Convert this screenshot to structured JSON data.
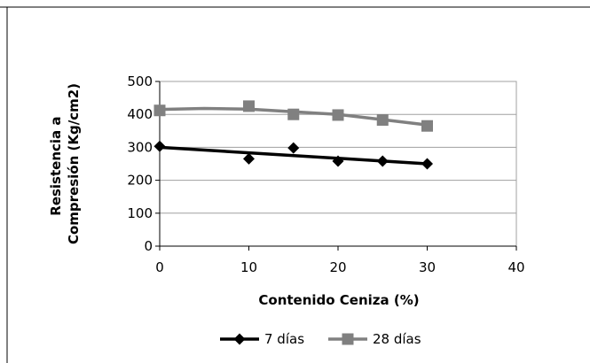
{
  "chart_data": {
    "type": "line",
    "title": "",
    "xlabel": "Contenido Ceniza (%)",
    "ylabel": "Resistencia a Compresión (Kg/cm2)",
    "ylabel_lines": [
      "Resistencia a",
      "Compresión (Kg/cm2)"
    ],
    "xlim": [
      0,
      40
    ],
    "ylim": [
      0,
      500
    ],
    "xticks": [
      0,
      10,
      20,
      30,
      40
    ],
    "yticks": [
      0,
      100,
      200,
      300,
      400,
      500
    ],
    "grid": "horizontal",
    "legend_position": "bottom",
    "series": [
      {
        "name": "7 días",
        "marker": "diamond",
        "color": "#000000",
        "points": [
          [
            0,
            303
          ],
          [
            10,
            265
          ],
          [
            15,
            298
          ],
          [
            20,
            258
          ],
          [
            25,
            258
          ],
          [
            30,
            250
          ]
        ],
        "trendline": [
          [
            0,
            300
          ],
          [
            30,
            250
          ]
        ]
      },
      {
        "name": "28 días",
        "marker": "square",
        "color": "#808080",
        "points": [
          [
            0,
            412
          ],
          [
            10,
            425
          ],
          [
            15,
            400
          ],
          [
            20,
            398
          ],
          [
            25,
            383
          ],
          [
            30,
            365
          ]
        ],
        "trendline": [
          [
            0,
            415
          ],
          [
            5,
            418
          ],
          [
            10,
            416
          ],
          [
            15,
            408
          ],
          [
            20,
            400
          ],
          [
            25,
            384
          ],
          [
            30,
            368
          ]
        ]
      }
    ]
  }
}
